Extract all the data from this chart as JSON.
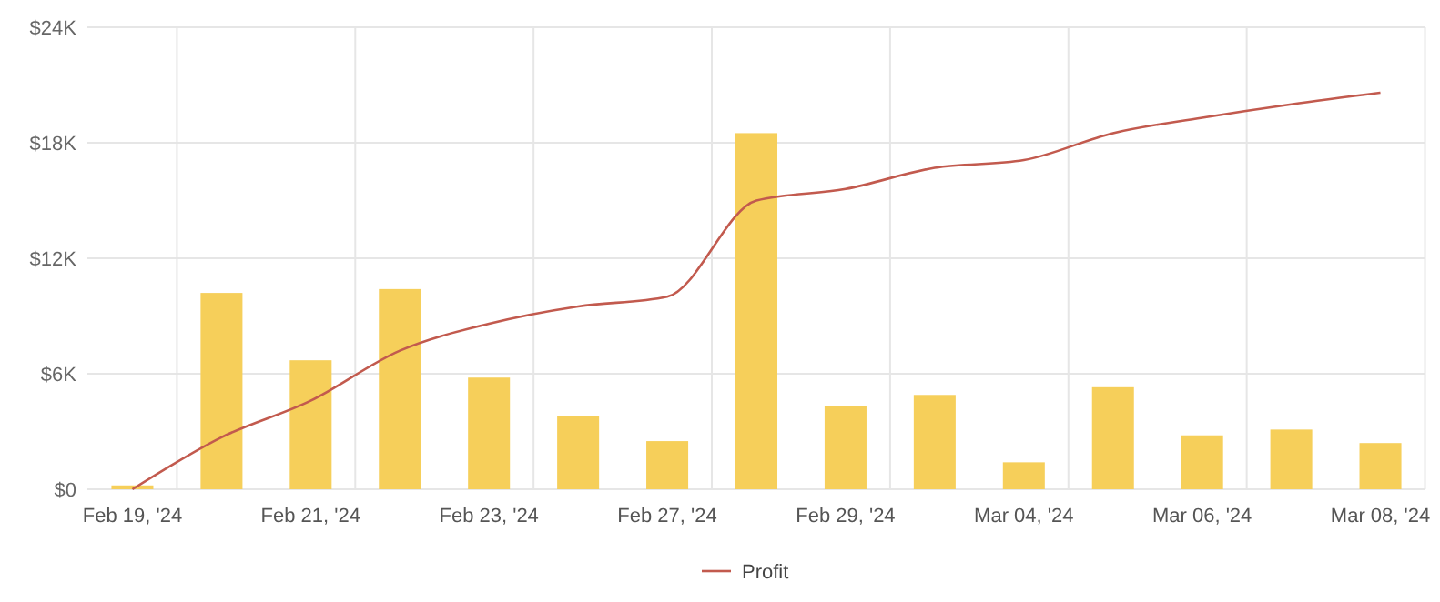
{
  "chart_data": {
    "type": "bar",
    "categories": [
      "Feb 19, '24",
      null,
      "Feb 21, '24",
      null,
      "Feb 23, '24",
      null,
      "Feb 27, '24",
      null,
      "Feb 29, '24",
      null,
      "Mar 04, '24",
      null,
      "Mar 06, '24",
      null,
      "Mar 08, '24"
    ],
    "series": [
      {
        "color": "#f6cf5a",
        "values": [
          0.2,
          10.2,
          6.7,
          10.4,
          5.8,
          3.8,
          2.5,
          18.5,
          4.3,
          4.9,
          1.4,
          5.3,
          2.8,
          3.1,
          2.4
        ]
      },
      {
        "type": "line",
        "name": "Profit",
        "color": "#c25a4e",
        "values": [
          0,
          2.7,
          4.6,
          7.2,
          8.6,
          9.5,
          10.0,
          15.0,
          15.6,
          16.7,
          17.1,
          18.5,
          19.3,
          20.0,
          20.6
        ]
      }
    ],
    "ylim": [
      0,
      24
    ],
    "yticks": [
      {
        "value": 0,
        "label": "$0"
      },
      {
        "value": 6,
        "label": "$6K"
      },
      {
        "value": 12,
        "label": "$12K"
      },
      {
        "value": 18,
        "label": "$18K"
      },
      {
        "value": 24,
        "label": "$24K"
      }
    ],
    "grid": true,
    "legend": "bottom",
    "line_style": "solid",
    "marker": "none"
  }
}
